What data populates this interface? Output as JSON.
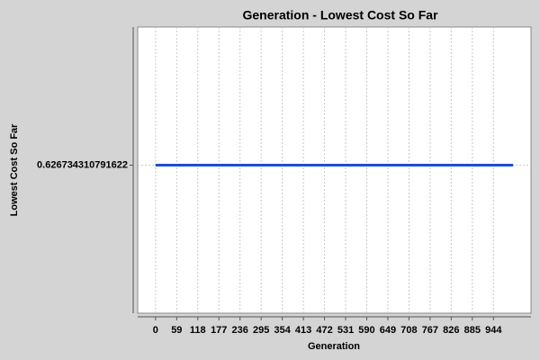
{
  "chart_data": {
    "type": "line",
    "title": "Generation - Lowest Cost So Far",
    "x_label": "Generation",
    "y_label": "Lowest Cost So Far",
    "x": [
      0,
      999
    ],
    "series": [
      {
        "name": "Lowest Cost So Far",
        "color": "#1f4fd0",
        "values": [
          0.626734310791622,
          0.626734310791622
        ]
      }
    ],
    "xlim": [
      -49.95,
      1048.95
    ],
    "xticks": [
      0,
      59,
      118,
      177,
      236,
      295,
      354,
      413,
      472,
      531,
      590,
      649,
      708,
      767,
      826,
      885,
      944
    ],
    "ylim": [
      0.6257,
      0.6277
    ],
    "yticks": [
      0.626734310791622
    ],
    "grid": true
  }
}
